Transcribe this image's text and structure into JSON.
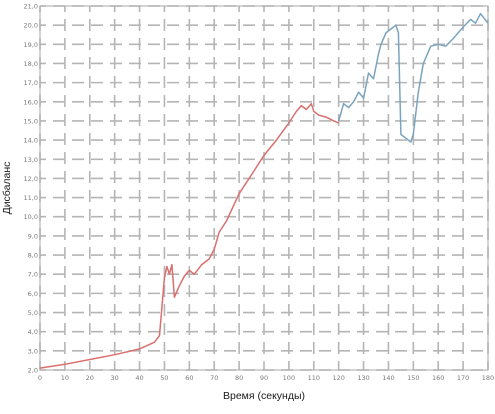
{
  "chart_data": {
    "type": "line",
    "title": "",
    "xlabel": "Время (секунды)",
    "ylabel": "Дисбаланс",
    "xlim": [
      0,
      180
    ],
    "ylim": [
      2.0,
      21.0
    ],
    "grid": true,
    "x_ticks": [
      "0",
      "10",
      "20",
      "30",
      "40",
      "50",
      "60",
      "70",
      "80",
      "90",
      "100",
      "110",
      "120",
      "130",
      "140",
      "150",
      "160",
      "170",
      "180"
    ],
    "y_ticks": [
      "2,0",
      "3,0",
      "4,0",
      "5,0",
      "6,0",
      "7,0",
      "8,0",
      "9,0",
      "10,0",
      "11,0",
      "12,0",
      "13,0",
      "14,0",
      "15,0",
      "16,0",
      "17,0",
      "18,0",
      "19,0",
      "20,0",
      "21,0"
    ],
    "series": [
      {
        "color": "#d9706e",
        "points": [
          [
            0,
            2.1
          ],
          [
            10,
            2.3
          ],
          [
            20,
            2.55
          ],
          [
            30,
            2.8
          ],
          [
            40,
            3.1
          ],
          [
            46,
            3.45
          ],
          [
            48,
            3.8
          ],
          [
            50,
            6.8
          ],
          [
            51,
            7.4
          ],
          [
            52,
            7.0
          ],
          [
            53,
            7.5
          ],
          [
            54,
            5.8
          ],
          [
            56,
            6.4
          ],
          [
            58,
            6.9
          ],
          [
            60,
            7.2
          ],
          [
            62,
            7.0
          ],
          [
            65,
            7.5
          ],
          [
            68,
            7.8
          ],
          [
            70,
            8.3
          ],
          [
            72,
            9.2
          ],
          [
            75,
            9.8
          ],
          [
            80,
            11.2
          ],
          [
            85,
            12.2
          ],
          [
            90,
            13.2
          ],
          [
            95,
            14.0
          ],
          [
            100,
            14.9
          ],
          [
            103,
            15.5
          ],
          [
            105,
            15.8
          ],
          [
            107,
            15.6
          ],
          [
            109,
            15.9
          ],
          [
            110,
            15.5
          ],
          [
            112,
            15.3
          ],
          [
            115,
            15.2
          ],
          [
            118,
            15.0
          ],
          [
            120,
            14.9
          ]
        ]
      },
      {
        "color": "#7aa3c0",
        "points": [
          [
            120,
            15.0
          ],
          [
            122,
            15.9
          ],
          [
            124,
            15.7
          ],
          [
            126,
            16.0
          ],
          [
            128,
            16.5
          ],
          [
            130,
            16.2
          ],
          [
            132,
            17.5
          ],
          [
            134,
            17.2
          ],
          [
            136,
            18.5
          ],
          [
            137,
            19.0
          ],
          [
            139,
            19.6
          ],
          [
            141,
            19.8
          ],
          [
            143,
            20.0
          ],
          [
            144,
            19.6
          ],
          [
            145,
            14.3
          ],
          [
            147,
            14.1
          ],
          [
            149,
            13.9
          ],
          [
            150,
            14.3
          ],
          [
            152,
            16.5
          ],
          [
            154,
            18.0
          ],
          [
            157,
            18.9
          ],
          [
            160,
            19.0
          ],
          [
            163,
            18.9
          ],
          [
            166,
            19.3
          ],
          [
            168,
            19.6
          ],
          [
            170,
            19.9
          ],
          [
            173,
            20.3
          ],
          [
            175,
            20.1
          ],
          [
            177,
            20.6
          ],
          [
            180,
            20.1
          ]
        ]
      }
    ]
  }
}
